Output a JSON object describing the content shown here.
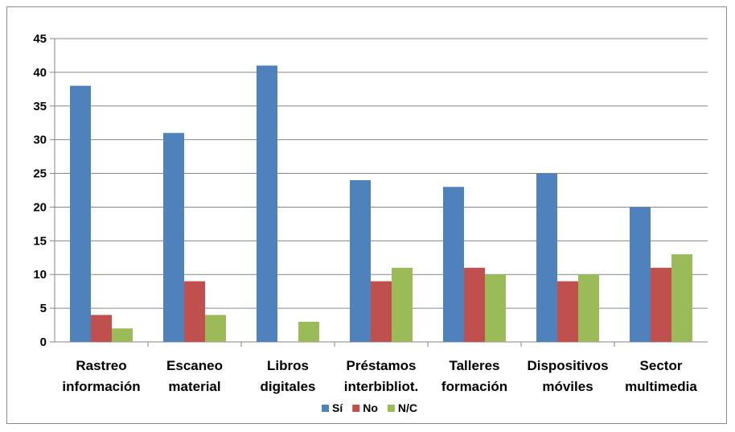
{
  "chart_data": {
    "type": "bar",
    "categories": [
      [
        "Rastreo",
        "información"
      ],
      [
        "Escaneo",
        "material"
      ],
      [
        "Libros",
        "digitales"
      ],
      [
        "Préstamos",
        "interbibliot."
      ],
      [
        "Talleres",
        "formación"
      ],
      [
        "Dispositivos",
        "móviles"
      ],
      [
        "Sector",
        "multimedia"
      ]
    ],
    "series": [
      {
        "name": "Sí",
        "color": "#4F81BD",
        "values": [
          38,
          31,
          41,
          24,
          23,
          25,
          20
        ]
      },
      {
        "name": "No",
        "color": "#C0504D",
        "values": [
          4,
          9,
          0,
          9,
          11,
          9,
          11
        ]
      },
      {
        "name": "N/C",
        "color": "#9BBB59",
        "values": [
          2,
          4,
          3,
          11,
          10,
          10,
          13
        ]
      }
    ],
    "yticks": [
      "0",
      "5",
      "10",
      "15",
      "20",
      "25",
      "30",
      "35",
      "40",
      "45"
    ],
    "ylim": [
      0,
      45
    ],
    "grid": true,
    "legend_position": "bottom"
  }
}
